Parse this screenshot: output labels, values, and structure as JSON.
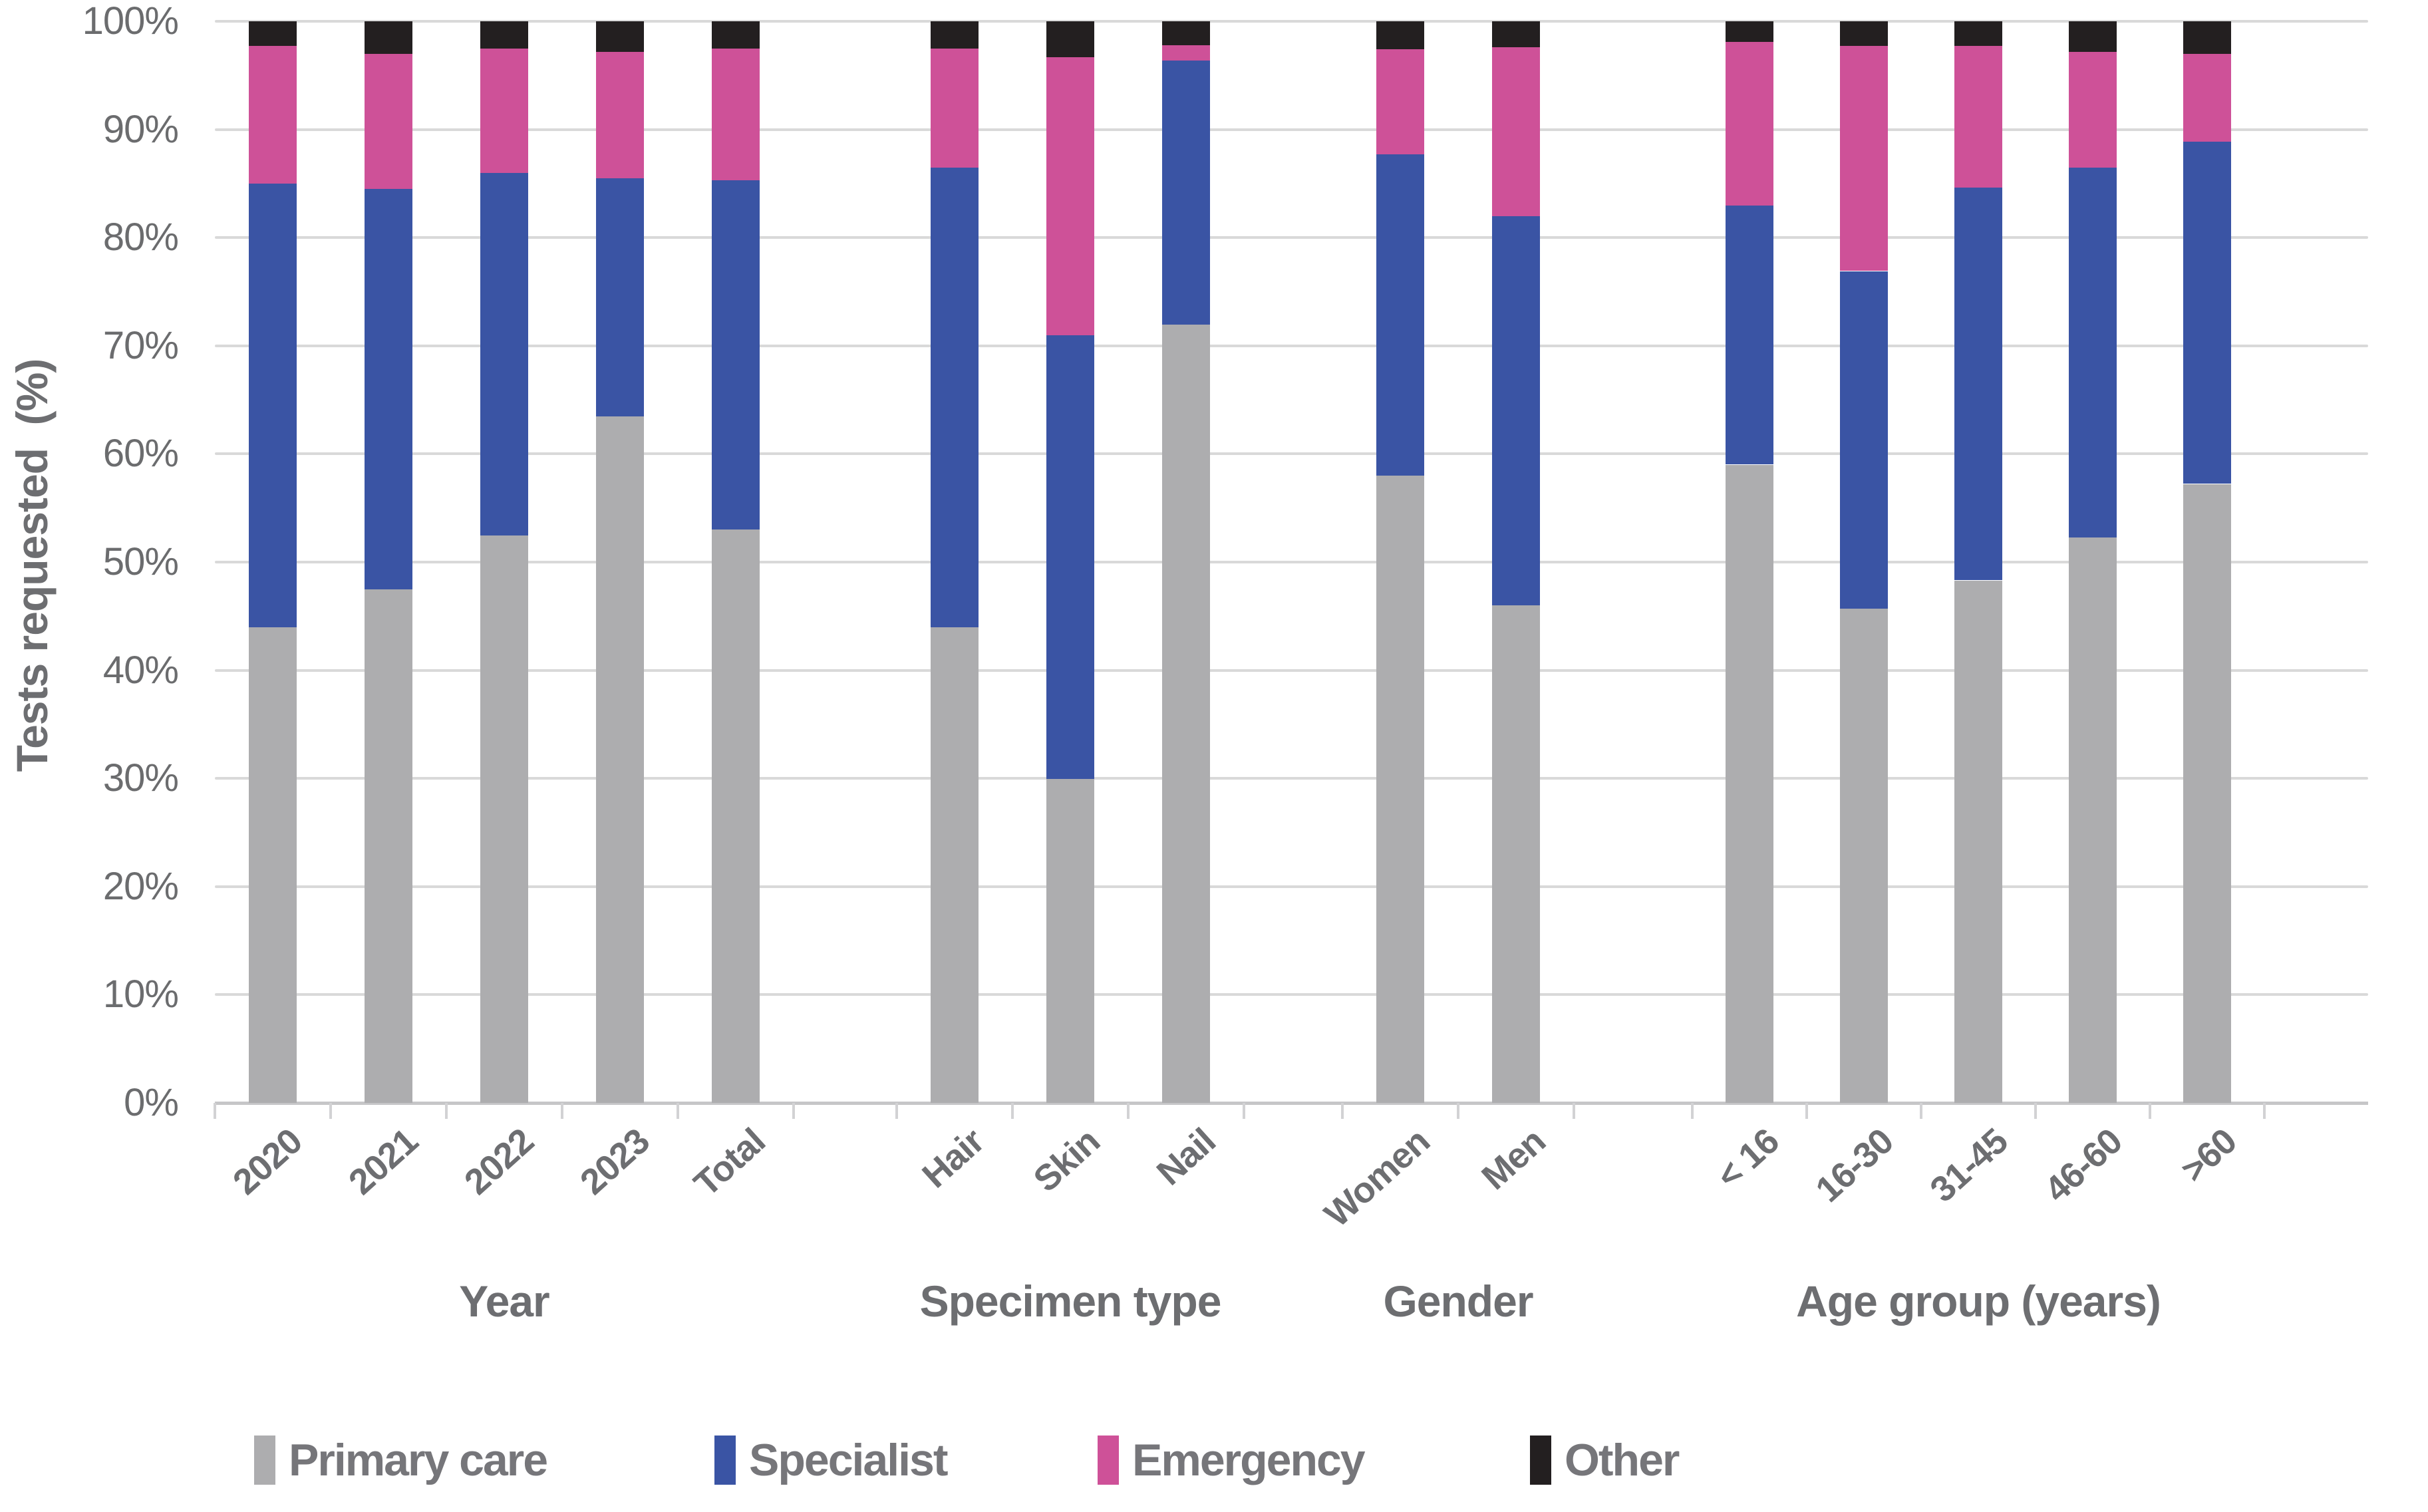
{
  "chart_data": {
    "type": "bar",
    "stacked": true,
    "percent_stacked": true,
    "title": "",
    "xlabel": "",
    "ylabel": "Tests requested  (%)",
    "ylim": [
      0,
      100
    ],
    "y_tick_labels": [
      "0%",
      "10%",
      "20%",
      "30%",
      "40%",
      "50%",
      "60%",
      "70%",
      "80%",
      "90%",
      "100%"
    ],
    "grid": "horizontal",
    "legend_position": "bottom",
    "groups": [
      {
        "label": "Year",
        "categories": [
          "2020",
          "2021",
          "2022",
          "2023",
          "Total"
        ]
      },
      {
        "label": "Specimen type",
        "categories": [
          "Hair",
          "Skin",
          "Nail"
        ]
      },
      {
        "label": "Gender",
        "categories": [
          "Women",
          "Men"
        ]
      },
      {
        "label": "Age group (years)",
        "categories": [
          "< 16",
          "16-30",
          "31-45",
          "46-60",
          ">60"
        ]
      }
    ],
    "series": [
      {
        "name": "Primary care",
        "color": "#adadaf",
        "values": [
          44.0,
          47.5,
          52.5,
          63.5,
          53.0,
          44.0,
          30.0,
          72.0,
          58.0,
          46.0,
          59.0,
          45.7,
          48.3,
          52.3,
          57.2
        ]
      },
      {
        "name": "Specialist",
        "color": "#3a54a4",
        "values": [
          41.0,
          37.0,
          33.5,
          22.0,
          32.3,
          42.5,
          41.0,
          24.4,
          29.7,
          36.0,
          24.0,
          31.2,
          36.3,
          34.2,
          31.7
        ]
      },
      {
        "name": "Emergency",
        "color": "#ce5198",
        "values": [
          12.7,
          12.5,
          11.5,
          11.7,
          12.2,
          11.0,
          25.7,
          1.4,
          9.7,
          15.6,
          15.1,
          20.8,
          13.1,
          10.7,
          8.1
        ]
      },
      {
        "name": "Other",
        "color": "#231f20",
        "values": [
          2.3,
          3.0,
          2.5,
          2.8,
          2.5,
          2.5,
          3.3,
          2.2,
          2.6,
          2.4,
          1.9,
          2.3,
          2.3,
          2.8,
          3.0
        ]
      }
    ]
  },
  "colors": {
    "gridline": "#d9d9d9",
    "axis_line": "#c6c6c8",
    "tick_mark": "#d2d2d4",
    "y_tick_text": "#6b6c6e",
    "x_tick_text": "#6d6e71",
    "group_label_text": "#6d6e71",
    "legend_text": "#76767a",
    "background": "#ffffff"
  }
}
